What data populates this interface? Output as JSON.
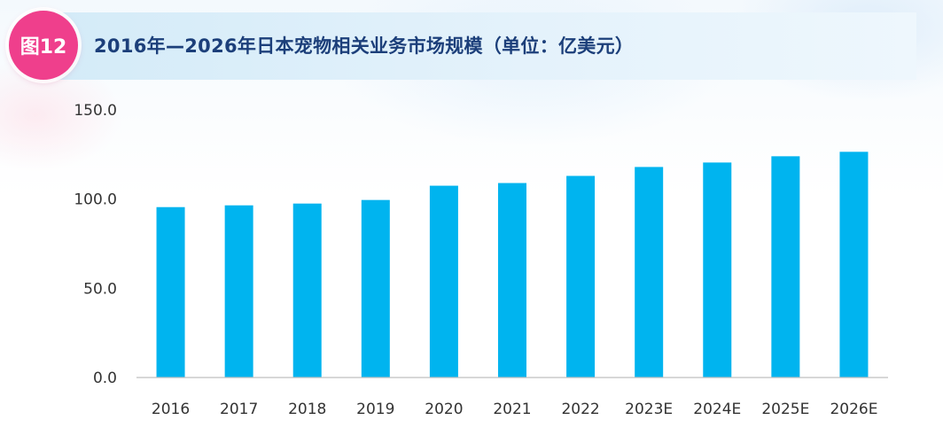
{
  "header": {
    "badge": "图12",
    "title": "2016年—2026年日本宠物相关业务市场规模（单位：亿美元）"
  },
  "colors": {
    "bar": "#00b4ef",
    "badge": "#ef3f8c",
    "title": "#1c3f7a"
  },
  "chart_data": {
    "type": "bar",
    "title": "2016年—2026年日本宠物相关业务市场规模（单位：亿美元）",
    "categories": [
      "2016",
      "2017",
      "2018",
      "2019",
      "2020",
      "2021",
      "2022",
      "2023E",
      "2024E",
      "2025E",
      "2026E"
    ],
    "values": [
      95.5,
      96.5,
      97.5,
      99.5,
      107.5,
      109,
      113,
      118,
      120.5,
      124,
      126.5
    ],
    "ylim": [
      0,
      150
    ],
    "yticks": [
      "0.0",
      "50.0",
      "100.0",
      "150.0"
    ],
    "ytick_values": [
      0,
      50,
      100,
      150
    ],
    "xlabel": "",
    "ylabel": "",
    "grid": false,
    "legend": "none"
  }
}
